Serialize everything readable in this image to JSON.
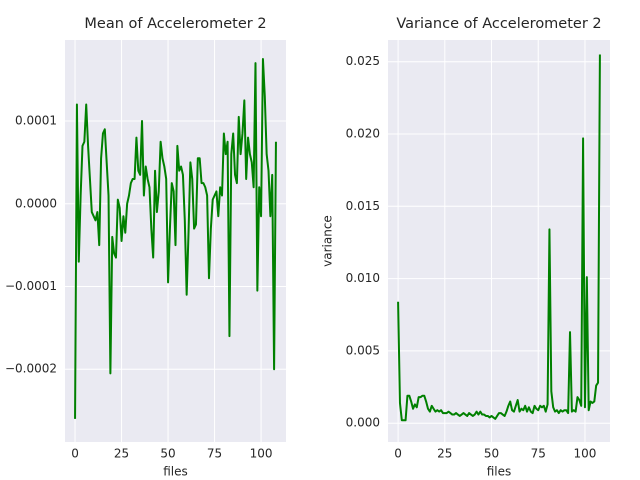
{
  "chart_data": [
    {
      "type": "line",
      "title": "Mean of Accelerometer 2",
      "xlabel": "files",
      "xlim": [
        -5.4,
        113.4
      ],
      "xticks": [
        0,
        25,
        50,
        75,
        100
      ],
      "ylim": [
        -0.000288,
        0.000198
      ],
      "yticks": [
        {
          "value": -0.0002,
          "label": "−0.0002"
        },
        {
          "value": -0.0001,
          "label": "−0.0001"
        },
        {
          "value": 0,
          "label": "0.0000"
        },
        {
          "value": 0.0001,
          "label": "0.0001"
        }
      ],
      "grid": true,
      "series": [
        {
          "color": "#008000",
          "values": [
            -0.00026,
            0.00012,
            -7e-05,
            1e-05,
            7e-05,
            7.5e-05,
            0.00012,
            7e-05,
            3e-05,
            -1e-05,
            -1.5e-05,
            -2e-05,
            -1e-05,
            -5e-05,
            5.5e-05,
            8.5e-05,
            9e-05,
            5e-05,
            1e-05,
            -0.000205,
            -4e-05,
            -6e-05,
            -6.5e-05,
            5e-06,
            -5e-06,
            -4.5e-05,
            -1.5e-05,
            -3.5e-05,
            0,
            1e-05,
            2.5e-05,
            3e-05,
            3e-05,
            8e-05,
            4e-05,
            3.5e-05,
            0.0001,
            1e-05,
            4.5e-05,
            3e-05,
            2e-05,
            -3e-05,
            -6.5e-05,
            4e-05,
            -1e-05,
            1.5e-05,
            7.5e-05,
            5.5e-05,
            4.5e-05,
            3e-05,
            -9.5e-05,
            -3e-05,
            2.5e-05,
            1.5e-05,
            -5e-05,
            7e-05,
            4e-05,
            4.5e-05,
            3.5e-05,
            -2e-05,
            -0.00011,
            -3.5e-05,
            5e-05,
            3e-05,
            -3e-05,
            -2.5e-05,
            5.5e-05,
            5.5e-05,
            2.5e-05,
            2.5e-05,
            2e-05,
            1e-05,
            -9e-05,
            -3e-05,
            5e-06,
            1e-05,
            1.5e-05,
            -1.5e-05,
            2e-05,
            1e-05,
            8.5e-05,
            6e-05,
            7.5e-05,
            -0.00016,
            6e-05,
            8.5e-05,
            3.5e-05,
            2.5e-05,
            0.000105,
            6e-05,
            8.5e-05,
            0.000125,
            3e-05,
            8e-05,
            6e-05,
            5e-05,
            2e-05,
            0.00017,
            -0.000105,
            2e-05,
            -1.5e-05,
            0.000175,
            0.00013,
            6e-05,
            4e-05,
            -1.5e-05,
            3.5e-05,
            -0.0002,
            7.5e-05
          ]
        }
      ]
    },
    {
      "type": "line",
      "title": "Variance of Accelerometer 2",
      "xlabel": "files",
      "ylabel": "variance",
      "xlim": [
        -5.4,
        113.4
      ],
      "xticks": [
        0,
        25,
        50,
        75,
        100
      ],
      "ylim": [
        -0.0013,
        0.0265
      ],
      "yticks": [
        {
          "value": 0,
          "label": "0.000"
        },
        {
          "value": 0.005,
          "label": "0.005"
        },
        {
          "value": 0.01,
          "label": "0.010"
        },
        {
          "value": 0.015,
          "label": "0.015"
        },
        {
          "value": 0.02,
          "label": "0.020"
        },
        {
          "value": 0.025,
          "label": "0.025"
        }
      ],
      "grid": true,
      "series": [
        {
          "color": "#008000",
          "values": [
            0.0084,
            0.0014,
            0.0002,
            0.0002,
            0.0002,
            0.0019,
            0.0019,
            0.0015,
            0.001,
            0.0013,
            0.0011,
            0.0018,
            0.0018,
            0.0019,
            0.0019,
            0.0015,
            0.001,
            0.0008,
            0.0012,
            0.001,
            0.0008,
            0.0009,
            0.0008,
            0.0009,
            0.0007,
            0.0007,
            0.0007,
            0.0008,
            0.0007,
            0.0006,
            0.0006,
            0.0007,
            0.0006,
            0.0005,
            0.0006,
            0.0007,
            0.0006,
            0.0005,
            0.0007,
            0.0006,
            0.0005,
            0.0006,
            0.0008,
            0.0006,
            0.0008,
            0.0006,
            0.0006,
            0.0005,
            0.0005,
            0.0004,
            0.0005,
            0.0004,
            0.0003,
            0.0005,
            0.0007,
            0.0007,
            0.0006,
            0.0005,
            0.0008,
            0.0012,
            0.0015,
            0.0009,
            0.0008,
            0.0012,
            0.0016,
            0.0008,
            0.001,
            0.0009,
            0.0012,
            0.0008,
            0.0011,
            0.0008,
            0.0007,
            0.0012,
            0.001,
            0.0009,
            0.0012,
            0.0011,
            0.0012,
            0.0008,
            0.0013,
            0.0134,
            0.0022,
            0.0011,
            0.0008,
            0.0009,
            0.0007,
            0.0009,
            0.0008,
            0.0009,
            0.0009,
            0.0007,
            0.0063,
            0.0008,
            0.0009,
            0.0008,
            0.0018,
            0.0016,
            0.0012,
            0.0197,
            0.0011,
            0.0101,
            0.0009,
            0.0015,
            0.0014,
            0.0015,
            0.0026,
            0.0028,
            0.0255
          ]
        }
      ]
    }
  ]
}
